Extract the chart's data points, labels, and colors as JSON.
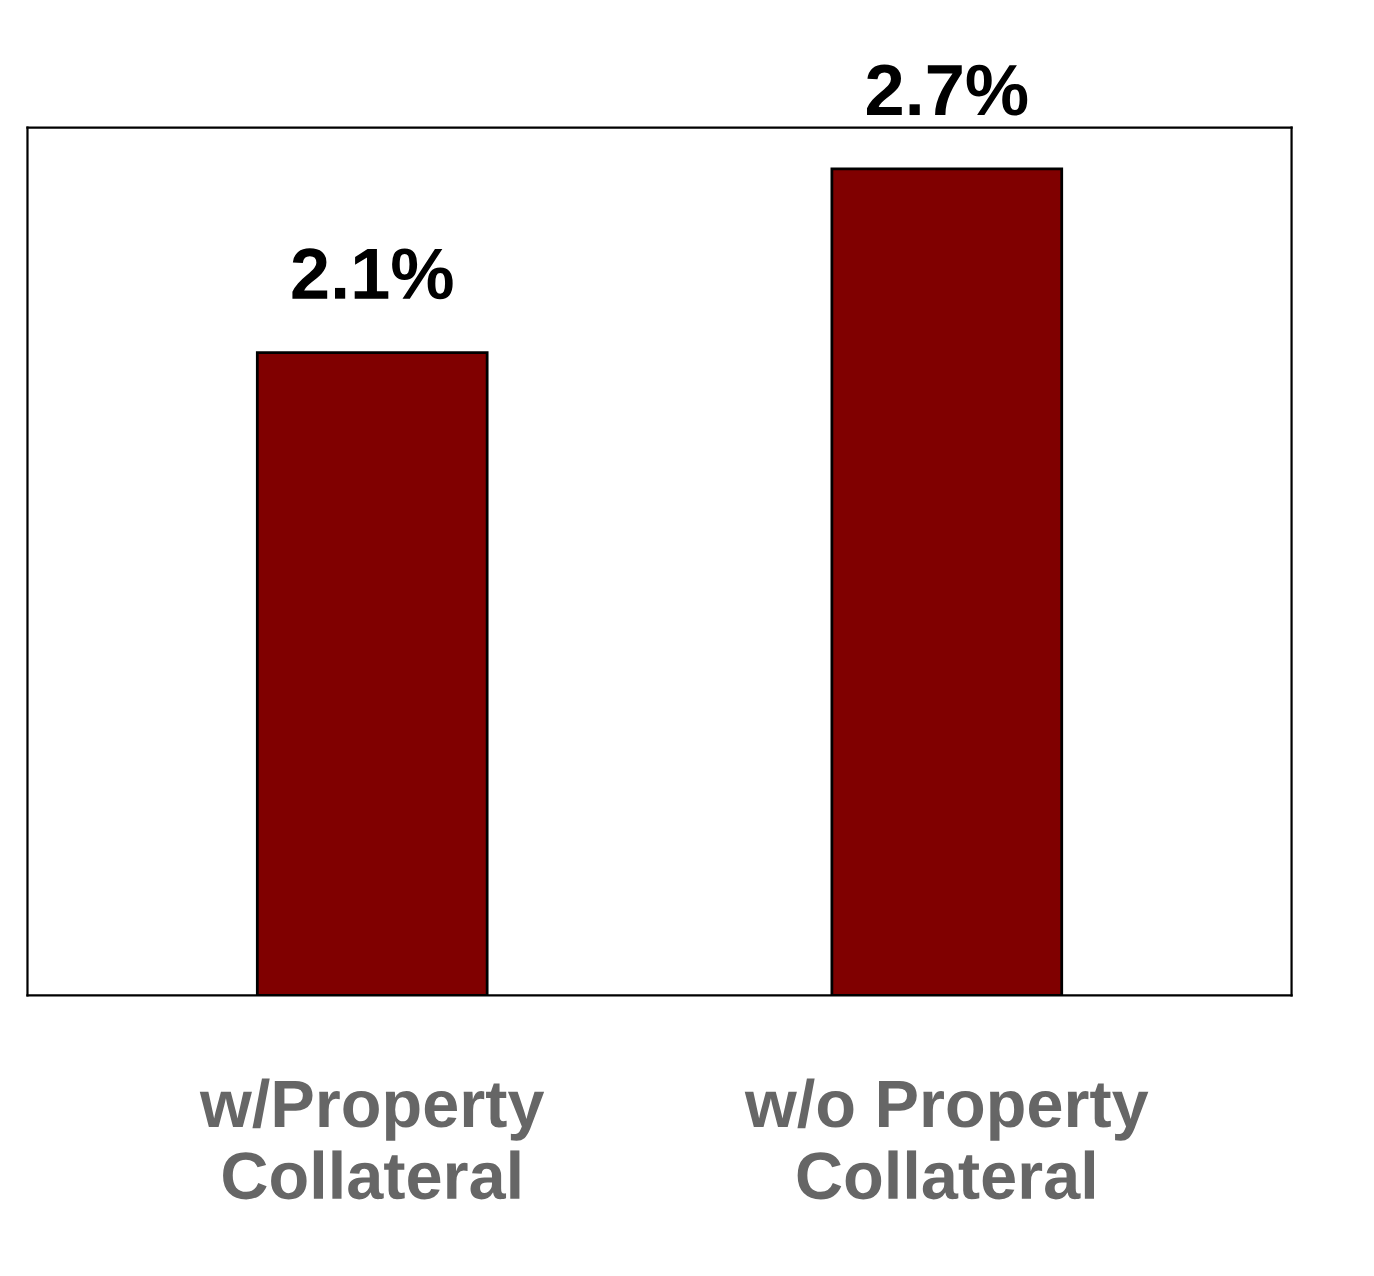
{
  "chart_data": {
    "type": "bar",
    "categories": [
      "w/Property\nCollateral",
      "w/o Property\nCollateral"
    ],
    "values": [
      2.1,
      2.7
    ],
    "value_labels": [
      "2.1%",
      "2.7%"
    ],
    "color": "#800000",
    "grid": false,
    "legend": false
  }
}
